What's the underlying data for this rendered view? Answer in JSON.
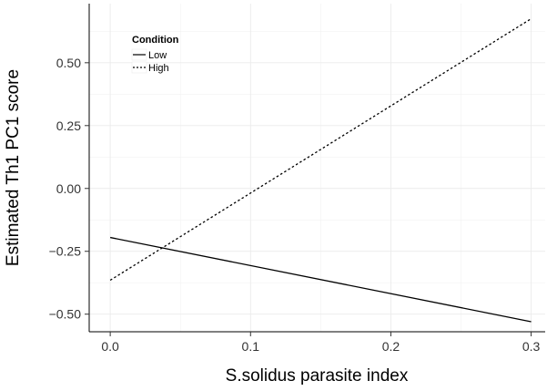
{
  "chart_data": {
    "type": "line",
    "title": "",
    "xlabel": "S.solidus parasite index",
    "ylabel": "Estimated Th1 PC1 score",
    "xlim": [
      -0.015,
      0.31
    ],
    "ylim": [
      -0.57,
      0.735
    ],
    "x_ticks": [
      0.0,
      0.1,
      0.2,
      0.3
    ],
    "x_tick_labels": [
      "0.0",
      "0.1",
      "0.2",
      "0.3"
    ],
    "y_ticks": [
      -0.5,
      -0.25,
      0.0,
      0.25,
      0.5
    ],
    "y_tick_labels": [
      "−0.50",
      "−0.25",
      "0.00",
      "0.25",
      "0.50"
    ],
    "grid": true,
    "legend": {
      "title": "Condition",
      "placement": "top-left"
    },
    "series": [
      {
        "name": "Low",
        "style": "solid",
        "color": "#000000",
        "x": [
          0.0,
          0.3
        ],
        "y": [
          -0.195,
          -0.53
        ]
      },
      {
        "name": "High",
        "style": "dotted",
        "color": "#000000",
        "x": [
          0.0,
          0.3
        ],
        "y": [
          -0.365,
          0.675
        ]
      }
    ]
  }
}
